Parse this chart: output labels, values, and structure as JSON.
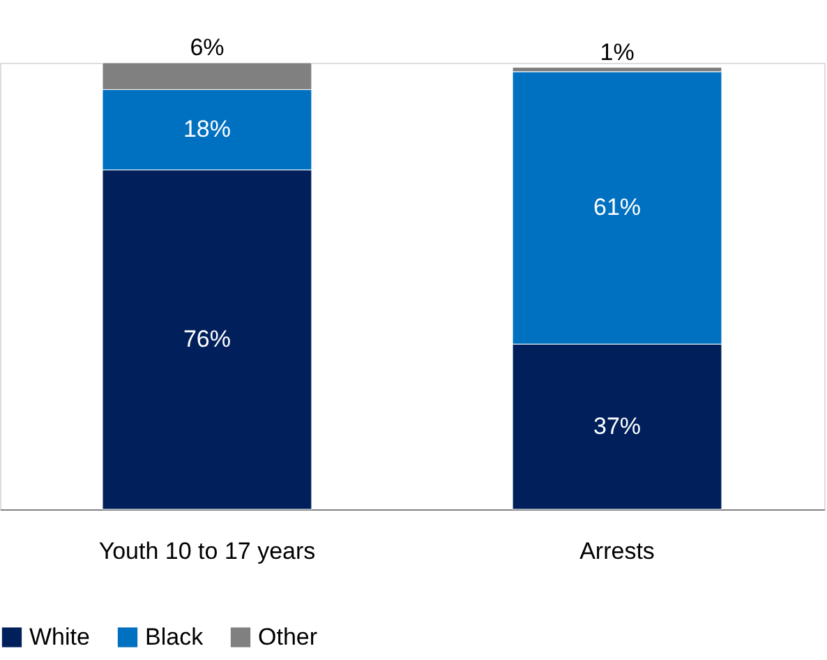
{
  "chart_data": {
    "type": "bar",
    "stacked": true,
    "categories": [
      "Youth 10 to 17 years",
      "Arrests"
    ],
    "series": [
      {
        "name": "White",
        "color": "#001f5b",
        "values": [
          76,
          37
        ],
        "value_labels": [
          "76%",
          "37%"
        ]
      },
      {
        "name": "Black",
        "color": "#0070c0",
        "values": [
          18,
          61
        ],
        "value_labels": [
          "18%",
          "61%"
        ]
      },
      {
        "name": "Other",
        "color": "#808080",
        "values": [
          6,
          1
        ],
        "value_labels": [
          "6%",
          "1%"
        ]
      }
    ],
    "legend": "bottom",
    "grid": false
  }
}
